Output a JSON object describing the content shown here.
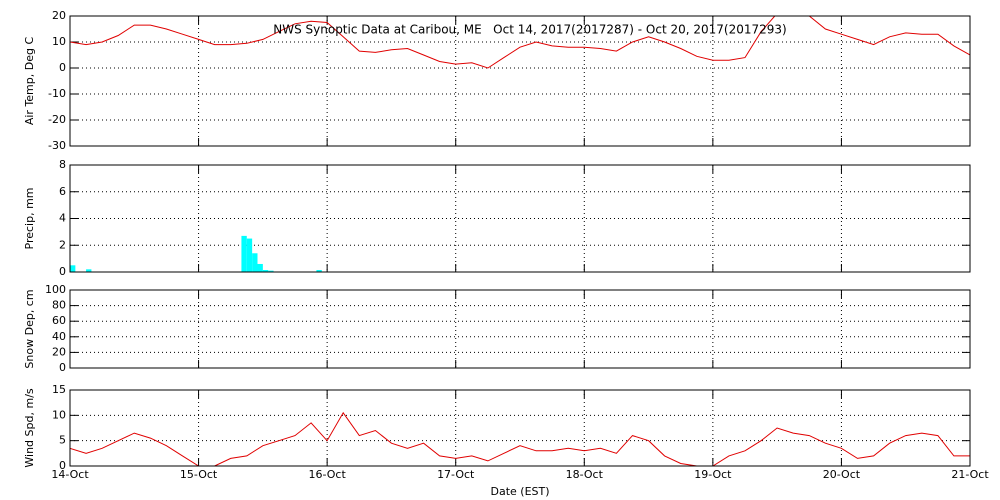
{
  "chart_data": [
    {
      "type": "line",
      "title": "NWS Synoptic Data at Caribou, ME   Oct 14, 2017(2017287) - Oct 20, 2017(2017293)",
      "ylabel": "Air Temp, Deg C",
      "color": "#e00000",
      "grid": true,
      "x": [
        0,
        3,
        6,
        9,
        12,
        15,
        18,
        21,
        24,
        27,
        30,
        33,
        36,
        39,
        42,
        45,
        48,
        51,
        54,
        57,
        60,
        63,
        66,
        69,
        72,
        75,
        78,
        81,
        84,
        87,
        90,
        93,
        96,
        99,
        102,
        105,
        108,
        111,
        114,
        117,
        120,
        123,
        126,
        129,
        132,
        135,
        138,
        141,
        144,
        147,
        150,
        153,
        156,
        159,
        162,
        165,
        168
      ],
      "values": [
        10,
        9,
        10,
        12.5,
        16.5,
        16.5,
        15,
        13,
        11,
        9,
        9,
        9.5,
        11,
        14,
        17,
        18,
        17.5,
        12,
        6.5,
        6,
        7,
        7.5,
        5,
        2.5,
        1.5,
        2,
        0,
        4,
        8,
        10,
        8.5,
        8,
        8,
        7.5,
        6.5,
        10,
        12,
        10,
        7.5,
        4.5,
        3,
        3,
        4,
        14,
        21,
        22,
        20,
        15,
        13,
        11,
        9,
        12,
        13.5,
        13,
        13,
        8.5,
        5
      ],
      "xlim": [
        0,
        168
      ],
      "xticks": [
        0,
        24,
        48,
        72,
        96,
        120,
        144,
        168
      ],
      "ylim": [
        -30,
        20
      ],
      "yticks": [
        -30,
        -20,
        -10,
        0,
        10,
        20
      ]
    },
    {
      "type": "bar",
      "ylabel": "Precip, mm",
      "color": "#00ffff",
      "grid": true,
      "x": [
        0,
        3,
        32,
        33,
        34,
        35,
        36,
        37,
        46
      ],
      "values": [
        0.5,
        0.2,
        2.7,
        2.5,
        1.4,
        0.6,
        0.15,
        0.1,
        0.15
      ],
      "xlim": [
        0,
        168
      ],
      "xticks": [
        0,
        24,
        48,
        72,
        96,
        120,
        144,
        168
      ],
      "ylim": [
        0,
        8
      ],
      "yticks": [
        0,
        2,
        4,
        6,
        8
      ]
    },
    {
      "type": "line",
      "ylabel": "Snow Dep, cm",
      "color": "#e00000",
      "grid": true,
      "x": [],
      "values": [],
      "xlim": [
        0,
        168
      ],
      "xticks": [
        0,
        24,
        48,
        72,
        96,
        120,
        144,
        168
      ],
      "ylim": [
        0,
        100
      ],
      "yticks": [
        0,
        20,
        40,
        60,
        80,
        100
      ]
    },
    {
      "type": "line",
      "ylabel": "Wind Spd, m/s",
      "xlabel": "Date (EST)",
      "color": "#e00000",
      "grid": true,
      "x": [
        0,
        3,
        6,
        9,
        12,
        15,
        18,
        21,
        24,
        27,
        30,
        33,
        36,
        39,
        42,
        45,
        48,
        51,
        54,
        57,
        60,
        63,
        66,
        69,
        72,
        75,
        78,
        81,
        84,
        87,
        90,
        93,
        96,
        99,
        102,
        105,
        108,
        111,
        114,
        117,
        120,
        123,
        126,
        129,
        132,
        135,
        138,
        141,
        144,
        147,
        150,
        153,
        156,
        159,
        162,
        165,
        168
      ],
      "values": [
        3.5,
        2.5,
        3.5,
        5,
        6.5,
        5.5,
        4,
        2,
        0,
        0,
        1.5,
        2,
        4,
        5,
        6,
        8.5,
        5,
        10.5,
        6,
        7,
        4.5,
        3.5,
        4.5,
        2,
        1.5,
        2,
        1,
        2.5,
        4,
        3,
        3,
        3.5,
        3,
        3.5,
        2.5,
        6,
        5,
        2,
        0.5,
        0,
        0,
        2,
        3,
        5,
        7.5,
        6.5,
        6,
        4.5,
        3.5,
        1.5,
        2,
        4.5,
        6,
        6.5,
        6,
        2,
        2
      ],
      "xlim": [
        0,
        168
      ],
      "xticks": [
        {
          "value": 0,
          "label": "14-Oct"
        },
        {
          "value": 24,
          "label": "15-Oct"
        },
        {
          "value": 48,
          "label": "16-Oct"
        },
        {
          "value": 72,
          "label": "17-Oct"
        },
        {
          "value": 96,
          "label": "18-Oct"
        },
        {
          "value": 120,
          "label": "19-Oct"
        },
        {
          "value": 144,
          "label": "20-Oct"
        },
        {
          "value": 168,
          "label": "21-Oct"
        }
      ],
      "ylim": [
        0,
        15
      ],
      "yticks": [
        0,
        5,
        10,
        15
      ]
    }
  ]
}
